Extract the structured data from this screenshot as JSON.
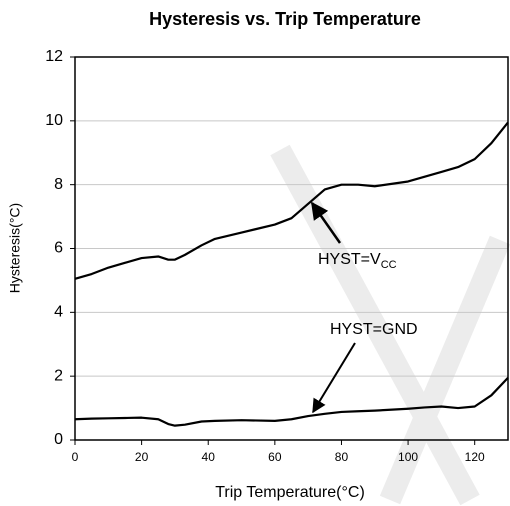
{
  "chart_data": {
    "type": "line",
    "title": "Hysteresis vs. Trip Temperature",
    "x_label": "Trip Temperature(°C)",
    "y_label": "Hysteresis(°C)",
    "x": [
      0,
      5,
      10,
      15,
      20,
      25,
      28,
      30,
      33,
      38,
      42,
      50,
      60,
      65,
      70,
      75,
      80,
      85,
      90,
      100,
      105,
      110,
      115,
      120,
      125,
      130
    ],
    "series": [
      {
        "color": "#000000",
        "values": [
          5.05,
          5.2,
          5.4,
          5.55,
          5.7,
          5.75,
          5.65,
          5.65,
          5.8,
          6.1,
          6.3,
          6.5,
          6.75,
          6.95,
          7.4,
          7.85,
          8.0,
          8.0,
          7.95,
          8.1,
          8.25,
          8.4,
          8.55,
          8.8,
          9.3,
          9.95
        ]
      },
      {
        "color": "#000000",
        "values": [
          0.65,
          0.67,
          0.68,
          0.69,
          0.7,
          0.65,
          0.5,
          0.45,
          0.48,
          0.58,
          0.6,
          0.62,
          0.6,
          0.65,
          0.75,
          0.82,
          0.88,
          0.9,
          0.92,
          0.98,
          1.02,
          1.05,
          1.0,
          1.05,
          1.4,
          1.95
        ]
      }
    ],
    "annotations": [
      {
        "text": "HYST=V",
        "subscript": "CC"
      },
      {
        "text": "HYST=GND"
      }
    ],
    "xlim": [
      0,
      130
    ],
    "xticks": [
      0,
      20,
      40,
      60,
      80,
      100,
      120
    ],
    "ylim": [
      0,
      12
    ],
    "yticks": [
      0,
      2,
      4,
      6,
      8,
      10,
      12
    ],
    "grid": true
  }
}
